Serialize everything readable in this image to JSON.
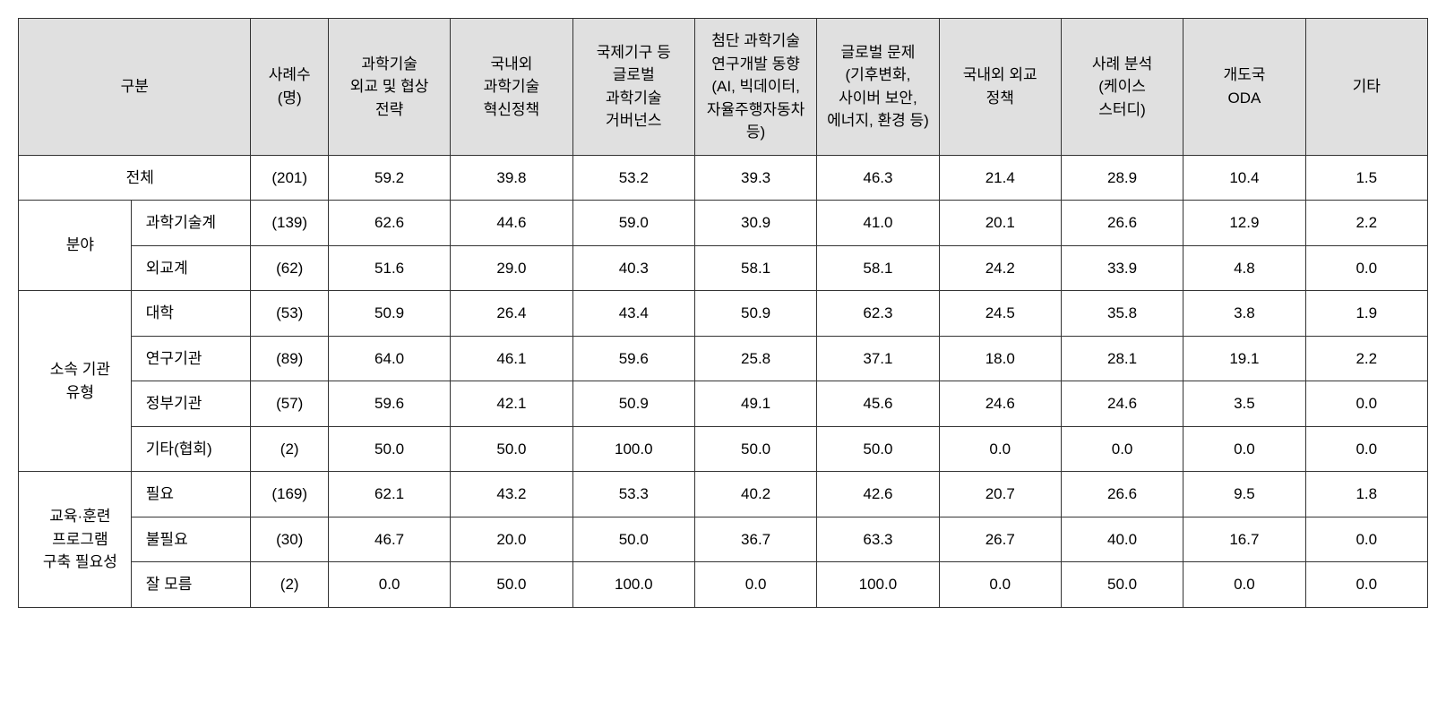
{
  "table": {
    "header_bg": "#e0e0e0",
    "border_color": "#333333",
    "font_size": 17,
    "columns": {
      "category": "구분",
      "n": "사례수\n(명)",
      "c0": "과학기술\n외교 및 협상\n전략",
      "c1": "국내외\n과학기술\n혁신정책",
      "c2": "국제기구 등\n글로벌\n과학기술\n거버넌스",
      "c3": "첨단 과학기술\n연구개발 동향\n(AI, 빅데이터,\n자율주행자동차\n등)",
      "c4": "글로벌 문제\n(기후변화,\n사이버 보안,\n에너지, 환경 등)",
      "c5": "국내외 외교\n정책",
      "c6": "사례 분석\n(케이스\n스터디)",
      "c7": "개도국\nODA",
      "c8": "기타"
    },
    "groups": [
      {
        "label": "전체",
        "spans_both": true,
        "rows": [
          {
            "sub": "",
            "n": "(201)",
            "v": [
              "59.2",
              "39.8",
              "53.2",
              "39.3",
              "46.3",
              "21.4",
              "28.9",
              "10.4",
              "1.5"
            ]
          }
        ]
      },
      {
        "label": "분야",
        "rows": [
          {
            "sub": "과학기술계",
            "n": "(139)",
            "v": [
              "62.6",
              "44.6",
              "59.0",
              "30.9",
              "41.0",
              "20.1",
              "26.6",
              "12.9",
              "2.2"
            ]
          },
          {
            "sub": "외교계",
            "n": "(62)",
            "v": [
              "51.6",
              "29.0",
              "40.3",
              "58.1",
              "58.1",
              "24.2",
              "33.9",
              "4.8",
              "0.0"
            ]
          }
        ]
      },
      {
        "label": "소속 기관\n유형",
        "rows": [
          {
            "sub": "대학",
            "n": "(53)",
            "v": [
              "50.9",
              "26.4",
              "43.4",
              "50.9",
              "62.3",
              "24.5",
              "35.8",
              "3.8",
              "1.9"
            ]
          },
          {
            "sub": "연구기관",
            "n": "(89)",
            "v": [
              "64.0",
              "46.1",
              "59.6",
              "25.8",
              "37.1",
              "18.0",
              "28.1",
              "19.1",
              "2.2"
            ]
          },
          {
            "sub": "정부기관",
            "n": "(57)",
            "v": [
              "59.6",
              "42.1",
              "50.9",
              "49.1",
              "45.6",
              "24.6",
              "24.6",
              "3.5",
              "0.0"
            ]
          },
          {
            "sub": "기타(협회)",
            "n": "(2)",
            "v": [
              "50.0",
              "50.0",
              "100.0",
              "50.0",
              "50.0",
              "0.0",
              "0.0",
              "0.0",
              "0.0"
            ]
          }
        ]
      },
      {
        "label": "교육·훈련\n프로그램\n구축 필요성",
        "rows": [
          {
            "sub": "필요",
            "n": "(169)",
            "v": [
              "62.1",
              "43.2",
              "53.3",
              "40.2",
              "42.6",
              "20.7",
              "26.6",
              "9.5",
              "1.8"
            ]
          },
          {
            "sub": "불필요",
            "n": "(30)",
            "v": [
              "46.7",
              "20.0",
              "50.0",
              "36.7",
              "63.3",
              "26.7",
              "40.0",
              "16.7",
              "0.0"
            ]
          },
          {
            "sub": "잘 모름",
            "n": "(2)",
            "v": [
              "0.0",
              "50.0",
              "100.0",
              "0.0",
              "100.0",
              "0.0",
              "50.0",
              "0.0",
              "0.0"
            ]
          }
        ]
      }
    ]
  }
}
